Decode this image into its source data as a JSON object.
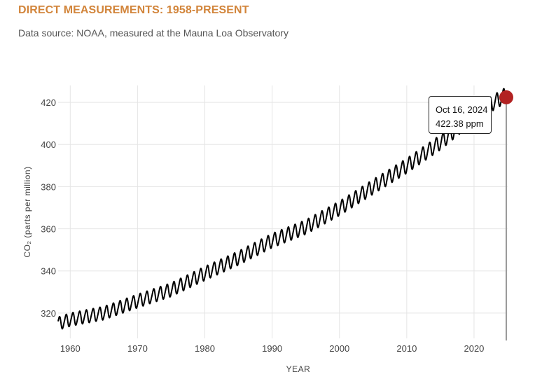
{
  "header": {
    "title": "DIRECT MEASUREMENTS: 1958-PRESENT",
    "subtitle": "Data source: NOAA, measured at the Mauna Loa Observatory"
  },
  "tooltip": {
    "date": "Oct 16, 2024",
    "value": "422.38 ppm"
  },
  "colors": {
    "title": "#d2853b",
    "line": "#000000",
    "marker": "#b22222",
    "grid": "#e5e5e5",
    "cursor": "#999999"
  },
  "chart_data": {
    "type": "line",
    "title": "DIRECT MEASUREMENTS: 1958-PRESENT",
    "subtitle": "Data source: NOAA, measured at the Mauna Loa Observatory",
    "xlabel": "YEAR",
    "ylabel": "CO₂ (parts per million)",
    "xlim": [
      1958.2,
      2025.0
    ],
    "ylim": [
      308,
      428
    ],
    "x_ticks": [
      1960,
      1970,
      1980,
      1990,
      2000,
      2010,
      2020
    ],
    "y_ticks": [
      320,
      340,
      360,
      380,
      400,
      420
    ],
    "grid": true,
    "series": [
      {
        "values_description_free_key": "trend",
        "trend_points": [
          [
            1958.2,
            315.0
          ],
          [
            1960,
            316.9
          ],
          [
            1965,
            320.0
          ],
          [
            1970,
            325.7
          ],
          [
            1975,
            331.1
          ],
          [
            1980,
            338.8
          ],
          [
            1985,
            346.1
          ],
          [
            1990,
            354.4
          ],
          [
            1995,
            360.8
          ],
          [
            2000,
            369.7
          ],
          [
            2005,
            379.9
          ],
          [
            2010,
            389.9
          ],
          [
            2015,
            401.0
          ],
          [
            2020,
            414.2
          ],
          [
            2024.8,
            423.6
          ]
        ],
        "seasonal_amplitude": [
          [
            1958,
            3.0
          ],
          [
            2024.8,
            3.5
          ]
        ]
      }
    ],
    "highlight": {
      "x": 2024.79,
      "y": 422.38,
      "label_date": "Oct 16, 2024",
      "label_value": "422.38 ppm"
    }
  }
}
